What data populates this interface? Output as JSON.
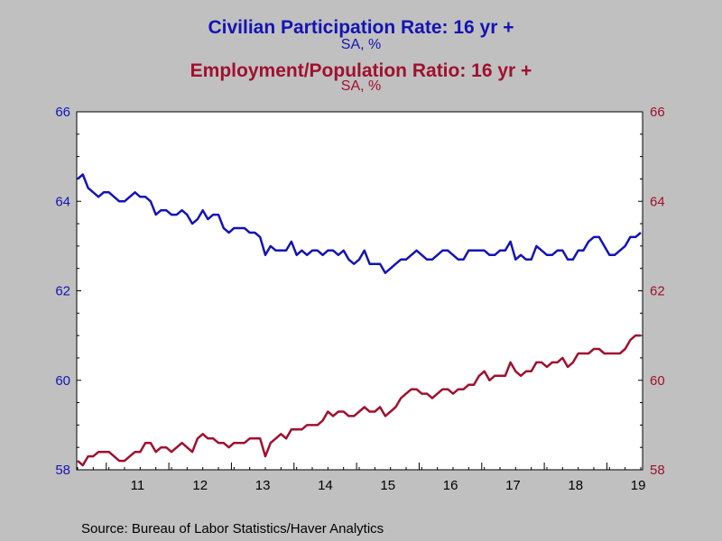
{
  "titles": {
    "line1": "Civilian Participation Rate: 16 yr +",
    "line1_sub": "SA, %",
    "line2": "Employment/Population Ratio: 16 yr +",
    "line2_sub": "SA, %"
  },
  "source": "Source:  Bureau of Labor Statistics/Haver Analytics",
  "colors": {
    "participation": "#1414b4",
    "employment": "#a0102e",
    "background": "#c0c0c0",
    "plot": "#ffffff"
  },
  "chart_data": {
    "type": "line",
    "x_start": "2010-07",
    "x_end": "2019-06",
    "frequency": "monthly",
    "x_tick_labels": [
      "11",
      "12",
      "13",
      "14",
      "15",
      "16",
      "17",
      "18",
      "19"
    ],
    "y_left": {
      "ylim": [
        58,
        66
      ],
      "ticks": [
        "58",
        "60",
        "62",
        "64",
        "66"
      ]
    },
    "y_right": {
      "ylim": [
        58,
        66
      ],
      "ticks": [
        "58",
        "60",
        "62",
        "64",
        "66"
      ]
    },
    "grid": false,
    "series": [
      {
        "axis": "left",
        "color": "#1414b4",
        "values": [
          64.5,
          64.6,
          64.3,
          64.2,
          64.1,
          64.2,
          64.2,
          64.1,
          64.0,
          64.0,
          64.1,
          64.2,
          64.1,
          64.1,
          64.0,
          63.7,
          63.8,
          63.8,
          63.7,
          63.7,
          63.8,
          63.7,
          63.5,
          63.6,
          63.8,
          63.6,
          63.7,
          63.7,
          63.4,
          63.3,
          63.4,
          63.4,
          63.4,
          63.3,
          63.3,
          63.2,
          62.8,
          63.0,
          62.9,
          62.9,
          62.9,
          63.1,
          62.8,
          62.9,
          62.8,
          62.9,
          62.9,
          62.8,
          62.9,
          62.9,
          62.8,
          62.9,
          62.7,
          62.6,
          62.7,
          62.9,
          62.6,
          62.6,
          62.6,
          62.4,
          62.5,
          62.6,
          62.7,
          62.7,
          62.8,
          62.9,
          62.8,
          62.7,
          62.7,
          62.8,
          62.9,
          62.9,
          62.8,
          62.7,
          62.7,
          62.9,
          62.9,
          62.9,
          62.9,
          62.8,
          62.8,
          62.9,
          62.9,
          63.1,
          62.7,
          62.8,
          62.7,
          62.7,
          63.0,
          62.9,
          62.8,
          62.8,
          62.9,
          62.9,
          62.7,
          62.7,
          62.9,
          62.9,
          63.1,
          63.2,
          63.2,
          63.0,
          62.8,
          62.8,
          62.9,
          63.0,
          63.2,
          63.2,
          63.3
        ]
      },
      {
        "axis": "right",
        "color": "#a0102e",
        "values": [
          58.2,
          58.1,
          58.3,
          58.3,
          58.4,
          58.4,
          58.4,
          58.3,
          58.2,
          58.2,
          58.3,
          58.4,
          58.4,
          58.6,
          58.6,
          58.4,
          58.5,
          58.5,
          58.4,
          58.5,
          58.6,
          58.5,
          58.4,
          58.7,
          58.8,
          58.7,
          58.7,
          58.6,
          58.6,
          58.5,
          58.6,
          58.6,
          58.6,
          58.7,
          58.7,
          58.7,
          58.3,
          58.6,
          58.7,
          58.8,
          58.7,
          58.9,
          58.9,
          58.9,
          59.0,
          59.0,
          59.0,
          59.1,
          59.3,
          59.2,
          59.3,
          59.3,
          59.2,
          59.2,
          59.3,
          59.4,
          59.3,
          59.3,
          59.4,
          59.2,
          59.3,
          59.4,
          59.6,
          59.7,
          59.8,
          59.8,
          59.7,
          59.7,
          59.6,
          59.7,
          59.8,
          59.8,
          59.7,
          59.8,
          59.8,
          59.9,
          59.9,
          60.1,
          60.2,
          60.0,
          60.1,
          60.1,
          60.1,
          60.4,
          60.2,
          60.1,
          60.2,
          60.2,
          60.4,
          60.4,
          60.3,
          60.4,
          60.4,
          60.5,
          60.3,
          60.4,
          60.6,
          60.6,
          60.6,
          60.7,
          60.7,
          60.6,
          60.6,
          60.6,
          60.6,
          60.7,
          60.9,
          61.0,
          61.0
        ]
      }
    ]
  }
}
